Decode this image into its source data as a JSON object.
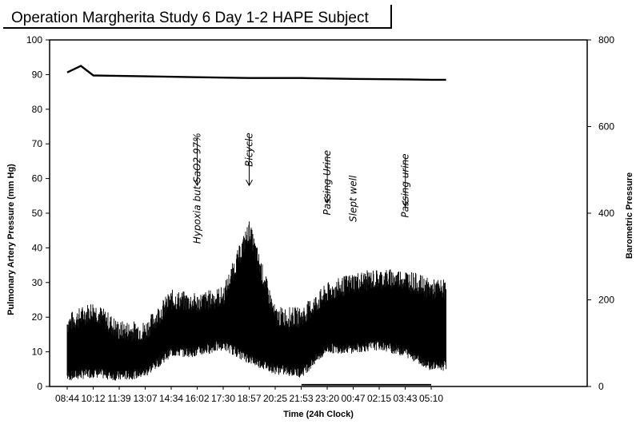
{
  "chart_data": {
    "type": "line",
    "title": "Operation Margherita Study 6 Day 1-2 HAPE Subject",
    "xlabel": "Time (24h Clock)",
    "ylabel": "Pulmonary Artery Pressure (mm Hg)",
    "y2label": "Barometric Pressure",
    "ylim": [
      0,
      100
    ],
    "y2lim": [
      0,
      800
    ],
    "yticks": [
      "0",
      "10",
      "20",
      "30",
      "40",
      "50",
      "60",
      "70",
      "80",
      "90",
      "100"
    ],
    "y2ticks": [
      "0",
      "200",
      "400",
      "600",
      "800"
    ],
    "xticks": [
      "08:44",
      "10:12",
      "11:39",
      "13:07",
      "14:34",
      "16:02",
      "17:30",
      "18:57",
      "20:25",
      "21:53",
      "23:20",
      "00:47",
      "02:15",
      "03:43",
      "05:10"
    ],
    "x_minutes_from_start": [
      0,
      88,
      175,
      263,
      350,
      438,
      526,
      613,
      701,
      789,
      876,
      963,
      1051,
      1139,
      1226
    ],
    "series": [
      {
        "name": "Pulmonary Artery Pressure",
        "axis": "left",
        "times": [
          "08:44",
          "10:12",
          "11:39",
          "13:07",
          "14:34",
          "16:02",
          "17:30",
          "18:57",
          "20:25",
          "21:53",
          "23:20",
          "00:47",
          "02:15",
          "03:43",
          "05:10"
        ],
        "upper": [
          18,
          22,
          16,
          16,
          25,
          24,
          26,
          45,
          20,
          20,
          27,
          30,
          31,
          31,
          28
        ],
        "lower": [
          3,
          4,
          3,
          4,
          10,
          10,
          12,
          8,
          5,
          4,
          11,
          11,
          12,
          10,
          6
        ],
        "mean": [
          10,
          13,
          9,
          10,
          17,
          17,
          18,
          25,
          13,
          12,
          19,
          20,
          21,
          20,
          17
        ]
      },
      {
        "name": "Barometric Pressure",
        "axis": "right",
        "times": [
          "08:44",
          "09:30",
          "10:12",
          "13:07",
          "16:02",
          "18:57",
          "21:53",
          "00:47",
          "03:43",
          "05:10",
          "06:00"
        ],
        "values": [
          725,
          740,
          718,
          716,
          714,
          712,
          712,
          710,
          709,
          708,
          708
        ]
      }
    ],
    "baseline_segment": {
      "from": "21:53",
      "to": "05:10",
      "value": 0.5
    },
    "annotations": [
      {
        "text": "Hypoxia but SaO2 97%",
        "time": "16:02",
        "y": 58
      },
      {
        "text": "Bicycle",
        "time": "18:57",
        "y": 58
      },
      {
        "text": "Passing Urine",
        "time": "23:20",
        "y": 53
      },
      {
        "text": "Slept well",
        "time": "00:47",
        "y": 60
      },
      {
        "text": "Passing urine",
        "time": "03:43",
        "y": 52
      }
    ]
  }
}
